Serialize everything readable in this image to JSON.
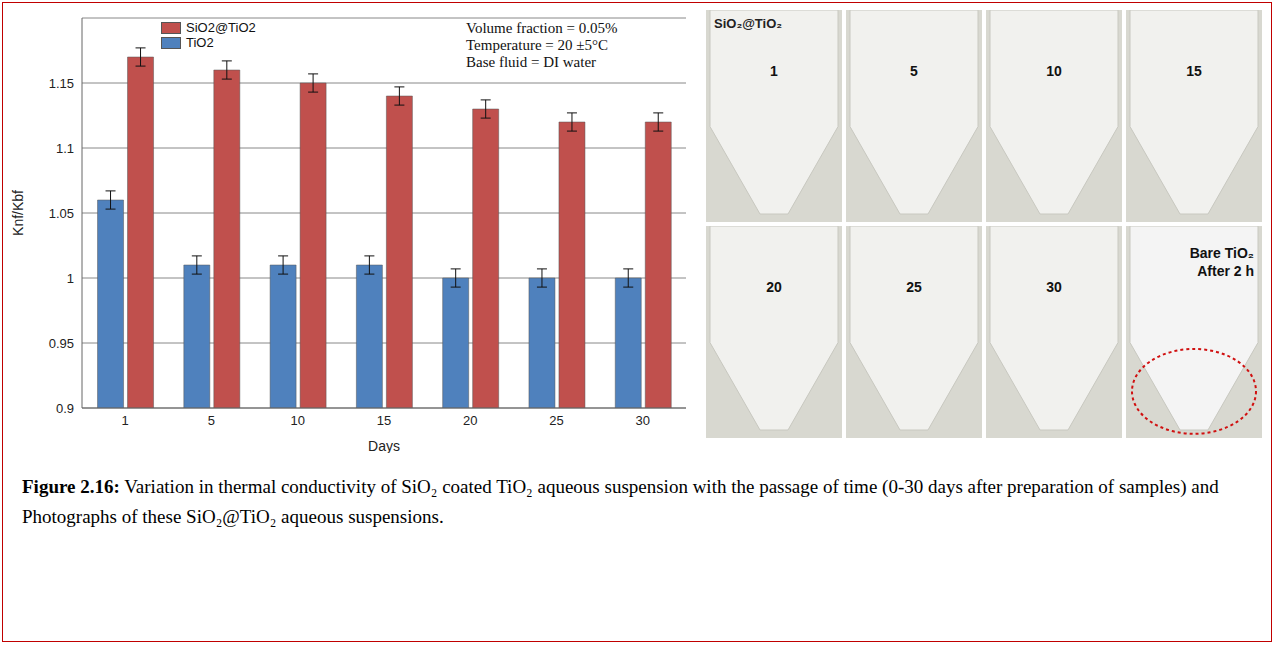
{
  "chart_data": {
    "type": "bar",
    "categories": [
      "1",
      "5",
      "10",
      "15",
      "20",
      "25",
      "30"
    ],
    "series": [
      {
        "name": "TiO2",
        "color": "#4f81bd",
        "values": [
          1.06,
          1.01,
          1.01,
          1.01,
          1.0,
          1.0,
          1.0
        ],
        "errors": [
          0.007,
          0.007,
          0.007,
          0.007,
          0.007,
          0.007,
          0.007
        ]
      },
      {
        "name": "SiO2@TiO2",
        "color": "#c0504d",
        "values": [
          1.17,
          1.16,
          1.15,
          1.14,
          1.13,
          1.12,
          1.12
        ],
        "errors": [
          0.007,
          0.007,
          0.007,
          0.007,
          0.007,
          0.007,
          0.007
        ]
      }
    ],
    "x_label": "Days",
    "y_label": "Knf/Kbf",
    "ylim": [
      0.9,
      1.2
    ],
    "yticks": [
      0.9,
      0.95,
      1,
      1.05,
      1.1,
      1.15
    ],
    "grid": true,
    "legend": "top-left",
    "annotations": [
      "Volume fraction = 0.05%",
      "Temperature = 20 ±5°C",
      "Base fluid = DI water"
    ]
  },
  "photos": {
    "title": "SiO₂@TiO₂",
    "panels": [
      [
        "1"
      ],
      [
        "5"
      ],
      [
        "10"
      ],
      [
        "15"
      ],
      [
        "20"
      ],
      [
        "25"
      ],
      [
        "30"
      ],
      [
        "Bare TiO₂",
        "After 2 h"
      ]
    ]
  },
  "caption": {
    "label": "Figure 2.16:",
    "text": "Variation in thermal conductivity of SiO₂ coated TiO₂ aqueous suspension with the passage of time (0-30 days after preparation of samples) and Photographs of these SiO₂@TiO₂ aqueous suspensions."
  }
}
